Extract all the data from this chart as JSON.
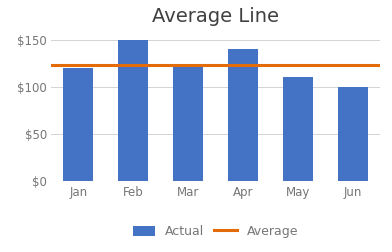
{
  "title": "Average Line",
  "categories": [
    "Jan",
    "Feb",
    "Mar",
    "Apr",
    "May",
    "Jun"
  ],
  "values": [
    120,
    150,
    122,
    140,
    110,
    100
  ],
  "bar_color": "#4472C4",
  "line_color": "#E36C09",
  "background_color": "#FFFFFF",
  "ylim": [
    0,
    160
  ],
  "yticks": [
    0,
    50,
    100,
    150
  ],
  "ytick_labels": [
    "$0",
    "$50",
    "$100",
    "$150"
  ],
  "legend_labels": [
    "Actual",
    "Average"
  ],
  "title_fontsize": 14,
  "tick_fontsize": 8.5,
  "legend_fontsize": 9,
  "grid_color": "#D3D3D3",
  "line_width": 2.2,
  "bar_width": 0.55,
  "tick_color": "#767676",
  "title_color": "#404040"
}
